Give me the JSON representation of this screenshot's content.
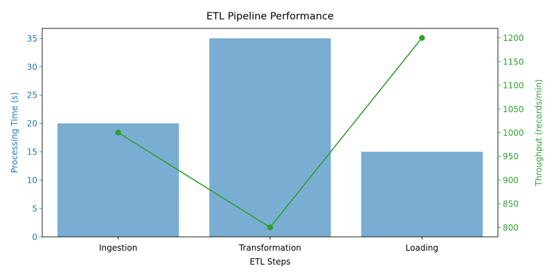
{
  "chart_data": {
    "type": "bar",
    "title": "ETL Pipeline Performance",
    "xlabel": "ETL Steps",
    "categories": [
      "Ingestion",
      "Transformation",
      "Loading"
    ],
    "series": [
      {
        "name": "Processing Time (s)",
        "type": "bar",
        "axis": "left",
        "values": [
          20,
          35,
          15
        ],
        "color": "#1f77b4",
        "opacity": 0.6
      },
      {
        "name": "Throughput (records/min)",
        "type": "line",
        "axis": "right",
        "values": [
          1000,
          800,
          1200
        ],
        "color": "#2ca02c",
        "marker": "circle"
      }
    ],
    "ylabel": "Processing Time (s)",
    "ylabel_color": "#1f77b4",
    "ylim": [
      0,
      36.75
    ],
    "yticks": [
      0,
      5,
      10,
      15,
      20,
      25,
      30,
      35
    ],
    "y2label": "Throughput (records/min)",
    "y2label_color": "#2ca02c",
    "y2lim": [
      780,
      1220
    ],
    "y2ticks": [
      800,
      850,
      900,
      950,
      1000,
      1050,
      1100,
      1150,
      1200
    ],
    "grid": false,
    "legend": "none"
  }
}
